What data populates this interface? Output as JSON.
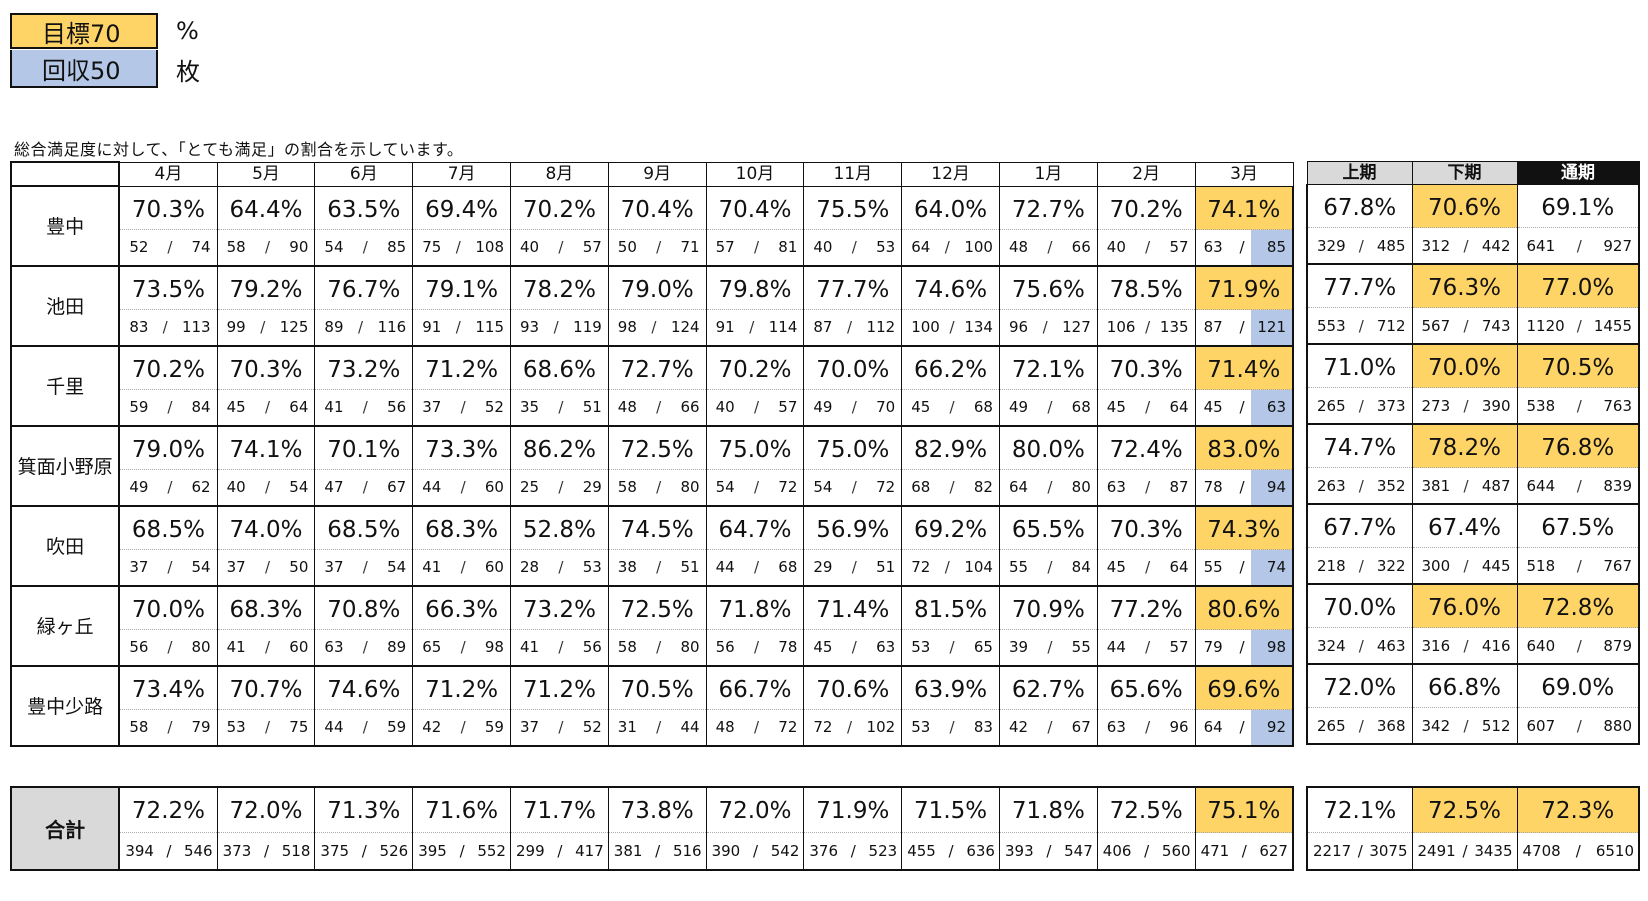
{
  "legend": {
    "target_label": "目標70",
    "target_unit": "%",
    "collect_label": "回収50",
    "collect_unit": "枚"
  },
  "note": "総合満足度に対して、「とても満足」の割合を示しています。",
  "colors": {
    "highlight_yellow": "#ffd466",
    "highlight_blue": "#b4c7e7",
    "header_gray": "#d9d9d9"
  },
  "months": [
    "4月",
    "5月",
    "6月",
    "7月",
    "8月",
    "9月",
    "10月",
    "11月",
    "12月",
    "1月",
    "2月",
    "3月"
  ],
  "summary_headers": [
    "上期",
    "下期",
    "通期"
  ],
  "stores": [
    {
      "name": "豊中",
      "months": [
        [
          "70.3%",
          "52",
          "74"
        ],
        [
          "64.4%",
          "58",
          "90"
        ],
        [
          "63.5%",
          "54",
          "85"
        ],
        [
          "69.4%",
          "75",
          "108"
        ],
        [
          "70.2%",
          "40",
          "57"
        ],
        [
          "70.4%",
          "50",
          "71"
        ],
        [
          "70.4%",
          "57",
          "81"
        ],
        [
          "75.5%",
          "40",
          "53"
        ],
        [
          "64.0%",
          "64",
          "100"
        ],
        [
          "72.7%",
          "48",
          "66"
        ],
        [
          "70.2%",
          "40",
          "57"
        ],
        [
          "74.1%",
          "63",
          "85"
        ]
      ],
      "summary": [
        [
          "67.8%",
          "329",
          "485"
        ],
        [
          "70.6%",
          "312",
          "442"
        ],
        [
          "69.1%",
          "641",
          "927"
        ]
      ],
      "summary_hl": [
        false,
        true,
        false
      ]
    },
    {
      "name": "池田",
      "months": [
        [
          "73.5%",
          "83",
          "113"
        ],
        [
          "79.2%",
          "99",
          "125"
        ],
        [
          "76.7%",
          "89",
          "116"
        ],
        [
          "79.1%",
          "91",
          "115"
        ],
        [
          "78.2%",
          "93",
          "119"
        ],
        [
          "79.0%",
          "98",
          "124"
        ],
        [
          "79.8%",
          "91",
          "114"
        ],
        [
          "77.7%",
          "87",
          "112"
        ],
        [
          "74.6%",
          "100",
          "134"
        ],
        [
          "75.6%",
          "96",
          "127"
        ],
        [
          "78.5%",
          "106",
          "135"
        ],
        [
          "71.9%",
          "87",
          "121"
        ]
      ],
      "summary": [
        [
          "77.7%",
          "553",
          "712"
        ],
        [
          "76.3%",
          "567",
          "743"
        ],
        [
          "77.0%",
          "1120",
          "1455"
        ]
      ],
      "summary_hl": [
        false,
        true,
        true
      ]
    },
    {
      "name": "千里",
      "months": [
        [
          "70.2%",
          "59",
          "84"
        ],
        [
          "70.3%",
          "45",
          "64"
        ],
        [
          "73.2%",
          "41",
          "56"
        ],
        [
          "71.2%",
          "37",
          "52"
        ],
        [
          "68.6%",
          "35",
          "51"
        ],
        [
          "72.7%",
          "48",
          "66"
        ],
        [
          "70.2%",
          "40",
          "57"
        ],
        [
          "70.0%",
          "49",
          "70"
        ],
        [
          "66.2%",
          "45",
          "68"
        ],
        [
          "72.1%",
          "49",
          "68"
        ],
        [
          "70.3%",
          "45",
          "64"
        ],
        [
          "71.4%",
          "45",
          "63"
        ]
      ],
      "summary": [
        [
          "71.0%",
          "265",
          "373"
        ],
        [
          "70.0%",
          "273",
          "390"
        ],
        [
          "70.5%",
          "538",
          "763"
        ]
      ],
      "summary_hl": [
        false,
        true,
        true
      ]
    },
    {
      "name": "箕面小野原",
      "months": [
        [
          "79.0%",
          "49",
          "62"
        ],
        [
          "74.1%",
          "40",
          "54"
        ],
        [
          "70.1%",
          "47",
          "67"
        ],
        [
          "73.3%",
          "44",
          "60"
        ],
        [
          "86.2%",
          "25",
          "29"
        ],
        [
          "72.5%",
          "58",
          "80"
        ],
        [
          "75.0%",
          "54",
          "72"
        ],
        [
          "75.0%",
          "54",
          "72"
        ],
        [
          "82.9%",
          "68",
          "82"
        ],
        [
          "80.0%",
          "64",
          "80"
        ],
        [
          "72.4%",
          "63",
          "87"
        ],
        [
          "83.0%",
          "78",
          "94"
        ]
      ],
      "summary": [
        [
          "74.7%",
          "263",
          "352"
        ],
        [
          "78.2%",
          "381",
          "487"
        ],
        [
          "76.8%",
          "644",
          "839"
        ]
      ],
      "summary_hl": [
        false,
        true,
        true
      ]
    },
    {
      "name": "吹田",
      "months": [
        [
          "68.5%",
          "37",
          "54"
        ],
        [
          "74.0%",
          "37",
          "50"
        ],
        [
          "68.5%",
          "37",
          "54"
        ],
        [
          "68.3%",
          "41",
          "60"
        ],
        [
          "52.8%",
          "28",
          "53"
        ],
        [
          "74.5%",
          "38",
          "51"
        ],
        [
          "64.7%",
          "44",
          "68"
        ],
        [
          "56.9%",
          "29",
          "51"
        ],
        [
          "69.2%",
          "72",
          "104"
        ],
        [
          "65.5%",
          "55",
          "84"
        ],
        [
          "70.3%",
          "45",
          "64"
        ],
        [
          "74.3%",
          "55",
          "74"
        ]
      ],
      "summary": [
        [
          "67.7%",
          "218",
          "322"
        ],
        [
          "67.4%",
          "300",
          "445"
        ],
        [
          "67.5%",
          "518",
          "767"
        ]
      ],
      "summary_hl": [
        false,
        false,
        false
      ]
    },
    {
      "name": "緑ヶ丘",
      "months": [
        [
          "70.0%",
          "56",
          "80"
        ],
        [
          "68.3%",
          "41",
          "60"
        ],
        [
          "70.8%",
          "63",
          "89"
        ],
        [
          "66.3%",
          "65",
          "98"
        ],
        [
          "73.2%",
          "41",
          "56"
        ],
        [
          "72.5%",
          "58",
          "80"
        ],
        [
          "71.8%",
          "56",
          "78"
        ],
        [
          "71.4%",
          "45",
          "63"
        ],
        [
          "81.5%",
          "53",
          "65"
        ],
        [
          "70.9%",
          "39",
          "55"
        ],
        [
          "77.2%",
          "44",
          "57"
        ],
        [
          "80.6%",
          "79",
          "98"
        ]
      ],
      "summary": [
        [
          "70.0%",
          "324",
          "463"
        ],
        [
          "76.0%",
          "316",
          "416"
        ],
        [
          "72.8%",
          "640",
          "879"
        ]
      ],
      "summary_hl": [
        false,
        true,
        true
      ]
    },
    {
      "name": "豊中少路",
      "months": [
        [
          "73.4%",
          "58",
          "79"
        ],
        [
          "70.7%",
          "53",
          "75"
        ],
        [
          "74.6%",
          "44",
          "59"
        ],
        [
          "71.2%",
          "42",
          "59"
        ],
        [
          "71.2%",
          "37",
          "52"
        ],
        [
          "70.5%",
          "31",
          "44"
        ],
        [
          "66.7%",
          "48",
          "72"
        ],
        [
          "70.6%",
          "72",
          "102"
        ],
        [
          "63.9%",
          "53",
          "83"
        ],
        [
          "62.7%",
          "42",
          "67"
        ],
        [
          "65.6%",
          "63",
          "96"
        ],
        [
          "69.6%",
          "64",
          "92"
        ]
      ],
      "summary": [
        [
          "72.0%",
          "265",
          "368"
        ],
        [
          "66.8%",
          "342",
          "512"
        ],
        [
          "69.0%",
          "607",
          "880"
        ]
      ],
      "summary_hl": [
        false,
        false,
        false
      ]
    }
  ],
  "total": {
    "label": "合計",
    "months": [
      [
        "72.2%",
        "394",
        "546"
      ],
      [
        "72.0%",
        "373",
        "518"
      ],
      [
        "71.3%",
        "375",
        "526"
      ],
      [
        "71.6%",
        "395",
        "552"
      ],
      [
        "71.7%",
        "299",
        "417"
      ],
      [
        "73.8%",
        "381",
        "516"
      ],
      [
        "72.0%",
        "390",
        "542"
      ],
      [
        "71.9%",
        "376",
        "523"
      ],
      [
        "71.5%",
        "455",
        "636"
      ],
      [
        "71.8%",
        "393",
        "547"
      ],
      [
        "72.5%",
        "406",
        "560"
      ],
      [
        "75.1%",
        "471",
        "627"
      ]
    ],
    "summary": [
      [
        "72.1%",
        "2217",
        "3075"
      ],
      [
        "72.5%",
        "2491",
        "3435"
      ],
      [
        "72.3%",
        "4708",
        "6510"
      ]
    ],
    "summary_hl": [
      false,
      true,
      true
    ]
  }
}
